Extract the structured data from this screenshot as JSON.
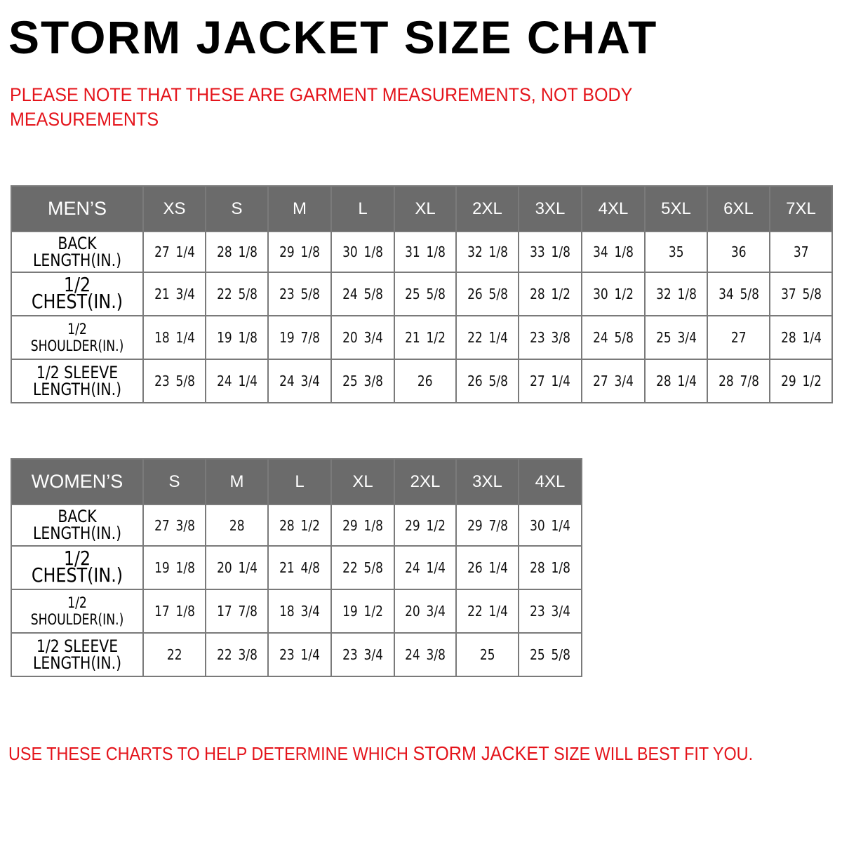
{
  "title": "STORM JACKET SIZE CHAT",
  "note": "PLEASE NOTE THAT THESE ARE GARMENT MEASUREMENTS, NOT BODY MEASUREMENTS",
  "footer": {
    "before": "USE THESE CHARTS TO HELP DETERMINE WHICH ",
    "highlight": "STORM JACKET ",
    "after": " SIZE WILL BEST FIT YOU."
  },
  "colors": {
    "header_bg": "#6b6b6b",
    "note_red": "#e4141b"
  },
  "mens": {
    "header": "MEN’S",
    "sizes": [
      "XS",
      "S",
      "M",
      "L",
      "XL",
      "2XL",
      "3XL",
      "4XL",
      "5XL",
      "6XL",
      "7XL"
    ],
    "rows": [
      {
        "label": "BACK LENGTH(IN.)",
        "values": [
          "27 1/4",
          "28 1/8",
          "29 1/8",
          "30 1/8",
          "31 1/8",
          "32 1/8",
          "33 1/8",
          "34 1/8",
          "35",
          "36",
          "37"
        ]
      },
      {
        "label": "1/2 CHEST(IN.)",
        "values": [
          "21 3/4",
          "22 5/8",
          "23 5/8",
          "24 5/8",
          "25 5/8",
          "26 5/8",
          "28 1/2",
          "30 1/2",
          "32 1/8",
          "34 5/8",
          "37 5/8"
        ]
      },
      {
        "label": "1/2 SHOULDER(IN.)",
        "values": [
          "18 1/4",
          "19 1/8",
          "19 7/8",
          "20 3/4",
          "21 1/2",
          "22 1/4",
          "23 3/8",
          "24 5/8",
          "25 3/4",
          "27",
          "28 1/4"
        ]
      },
      {
        "label": "1/2 SLEEVE LENGTH(IN.)",
        "values": [
          "23 5/8",
          "24 1/4",
          "24 3/4",
          "25 3/8",
          "26",
          "26 5/8",
          "27 1/4",
          "27 3/4",
          "28 1/4",
          "28 7/8",
          "29 1/2"
        ]
      }
    ]
  },
  "womens": {
    "header": "WOMEN’S",
    "sizes": [
      "S",
      "M",
      "L",
      "XL",
      "2XL",
      "3XL",
      "4XL"
    ],
    "rows": [
      {
        "label": "BACK LENGTH(IN.)",
        "values": [
          "27 3/8",
          "28",
          "28 1/2",
          "29 1/8",
          "29 1/2",
          "29 7/8",
          "30 1/4"
        ]
      },
      {
        "label": "1/2 CHEST(IN.)",
        "values": [
          "19 1/8",
          "20 1/4",
          "21 4/8",
          "22 5/8",
          "24 1/4",
          "26 1/4",
          "28 1/8"
        ]
      },
      {
        "label": "1/2 SHOULDER(IN.)",
        "values": [
          "17 1/8",
          "17 7/8",
          "18 3/4",
          "19 1/2",
          "20 3/4",
          "22 1/4",
          "23 3/4"
        ]
      },
      {
        "label": "1/2 SLEEVE LENGTH(IN.)",
        "values": [
          "22",
          "22 3/8",
          "23 1/4",
          "23 3/4",
          "24 3/8",
          "25",
          "25 5/8"
        ]
      }
    ]
  }
}
